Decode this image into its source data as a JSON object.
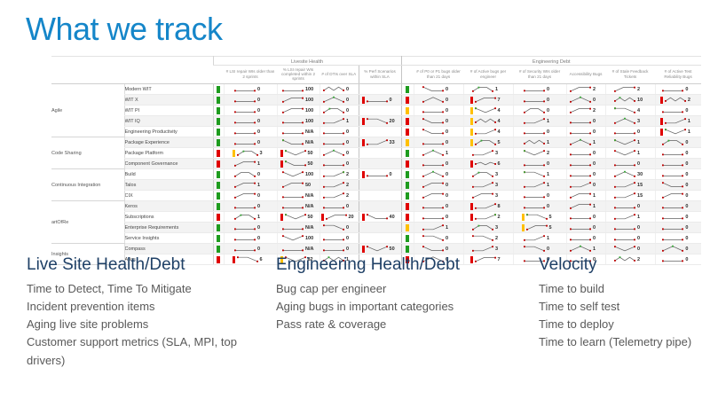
{
  "title": "What we track",
  "colors": {
    "accent_blue": "#1586c9",
    "heading_navy": "#1f4066",
    "body_gray": "#595959",
    "status_green": "#1f9c1f",
    "status_red": "#e00000",
    "status_yellow": "#ffc000"
  },
  "table": {
    "section_headers": {
      "livesite": "Livesite Health",
      "engineering": "Engineering Debt"
    },
    "ls_columns": [
      "# LSI repair WIs older than 2 sprints",
      "% LSI repair WIs completed within 2 sprints",
      "# of DTIs over SLA",
      "% Perf Scenarios within SLA"
    ],
    "eng_columns": [
      "# of P0 or P1 bugs older than 21 days",
      "# of Active bugs per engineer",
      "# of Security WIs older than 21 days",
      "Accessibility Bugs",
      "# of Stale Feedback Tickets",
      "# of Active Test Reliability Bugs"
    ],
    "groups": [
      {
        "label": "Agile",
        "span": 5
      },
      {
        "label": "Code Sharing",
        "span": 3
      },
      {
        "label": "Continuous Integration",
        "span": 3
      },
      {
        "label": "artOfRe",
        "span": 4
      },
      {
        "label": "Insights",
        "span": 2
      }
    ],
    "rows": [
      {
        "team": "Modern WIT",
        "ls_status": "green",
        "eng_status": "green",
        "ls": [
          {
            "v": "0",
            "p": "flat"
          },
          {
            "v": "100",
            "p": "flat"
          },
          {
            "v": "0",
            "p": "zigzag"
          },
          null
        ],
        "eng": [
          {
            "v": "0",
            "p": "fallflat"
          },
          {
            "v": "1",
            "p": "hump",
            "g": true
          },
          {
            "v": "0",
            "p": "flat"
          },
          {
            "v": "2",
            "p": "riseflat"
          },
          {
            "v": "2",
            "p": "riseflat"
          },
          {
            "v": "0",
            "p": "flat"
          }
        ]
      },
      {
        "team": "WIT X",
        "ls_status": "green",
        "eng_status": "red",
        "ls": [
          {
            "v": "0",
            "p": "flat"
          },
          {
            "v": "100",
            "p": "riseflat"
          },
          {
            "v": "0",
            "p": "peak",
            "g": true
          },
          {
            "v": "0",
            "p": "flat",
            "b": "red"
          }
        ],
        "eng": [
          {
            "v": "0",
            "p": "peak"
          },
          {
            "v": "7",
            "p": "riseflat",
            "b": "red"
          },
          {
            "v": "0",
            "p": "flat"
          },
          {
            "v": "0",
            "p": "peak",
            "g": true
          },
          {
            "v": "10",
            "p": "zigzag",
            "g": true
          },
          {
            "v": "2",
            "p": "zigzag",
            "b": "red"
          }
        ]
      },
      {
        "team": "WIT PI",
        "ls_status": "green",
        "eng_status": "yellow",
        "ls": [
          {
            "v": "0",
            "p": "flat"
          },
          {
            "v": "100",
            "p": "riseflat"
          },
          {
            "v": "0",
            "p": "hump",
            "g": true
          },
          null
        ],
        "eng": [
          {
            "v": "0",
            "p": "flat"
          },
          {
            "v": "4",
            "p": "dip",
            "b": "yellow",
            "g": true
          },
          {
            "v": "0",
            "p": "hump"
          },
          {
            "v": "2",
            "p": "riseflat"
          },
          {
            "v": "4",
            "p": "fall",
            "g": true
          },
          {
            "v": "0",
            "p": "flat"
          }
        ]
      },
      {
        "team": "WIT IQ",
        "ls_status": "green",
        "eng_status": "red",
        "ls": [
          {
            "v": "0",
            "p": "flat"
          },
          {
            "v": "100",
            "p": "flat"
          },
          {
            "v": "1",
            "p": "rise"
          },
          {
            "v": "20",
            "p": "fall",
            "b": "red"
          }
        ],
        "eng": [
          {
            "v": "0",
            "p": "fallflat"
          },
          {
            "v": "4",
            "p": "zigzag",
            "b": "yellow"
          },
          {
            "v": "1",
            "p": "rise"
          },
          {
            "v": "0",
            "p": "flat"
          },
          {
            "v": "3",
            "p": "peak",
            "g": true
          },
          {
            "v": "1",
            "p": "rise",
            "b": "red"
          }
        ]
      },
      {
        "team": "Engineering Productivity",
        "ls_status": "green",
        "eng_status": "red",
        "ls": [
          {
            "v": "0",
            "p": "flat"
          },
          {
            "v": "N/A",
            "p": "flat"
          },
          {
            "v": "0",
            "p": "flat"
          },
          null
        ],
        "eng": [
          {
            "v": "0",
            "p": "fallflat"
          },
          {
            "v": "4",
            "p": "rise",
            "b": "yellow"
          },
          {
            "v": "0",
            "p": "flat"
          },
          {
            "v": "0",
            "p": "flat"
          },
          {
            "v": "0",
            "p": "flat"
          },
          {
            "v": "1",
            "p": "dip",
            "b": "red",
            "g": true
          }
        ]
      },
      {
        "team": "Package Experience",
        "ls_status": "green",
        "eng_status": "yellow",
        "ls": [
          {
            "v": "0",
            "p": "flat"
          },
          {
            "v": "N/A",
            "p": "fallflat",
            "g": true
          },
          {
            "v": "0",
            "p": "flat"
          },
          {
            "v": "33",
            "p": "rise",
            "b": "red"
          }
        ],
        "eng": [
          {
            "v": "0",
            "p": "flat"
          },
          {
            "v": "5",
            "p": "hump",
            "b": "yellow",
            "g": true
          },
          {
            "v": "1",
            "p": "zigzag"
          },
          {
            "v": "1",
            "p": "peak",
            "g": true
          },
          {
            "v": "1",
            "p": "dip",
            "g": true
          },
          {
            "v": "0",
            "p": "hump",
            "g": true
          }
        ]
      },
      {
        "team": "Package Platform",
        "ls_status": "red",
        "eng_status": "green",
        "ls": [
          {
            "v": "3",
            "p": "hump",
            "b": "yellow",
            "g": true
          },
          {
            "v": "50",
            "p": "dip",
            "b": "red",
            "g": true
          },
          {
            "v": "0",
            "p": "peak",
            "g": true
          },
          null
        ],
        "eng": [
          {
            "v": "1",
            "p": "peak",
            "g": true
          },
          {
            "v": "3",
            "p": "rise"
          },
          {
            "v": "2",
            "p": "dip",
            "g": true
          },
          {
            "v": "0",
            "p": "flat"
          },
          {
            "v": "1",
            "p": "dip"
          },
          {
            "v": "0",
            "p": "flat"
          }
        ]
      },
      {
        "team": "Component Governance",
        "ls_status": "red",
        "eng_status": "red",
        "ls": [
          {
            "v": "1",
            "p": "riseflat"
          },
          {
            "v": "50",
            "p": "fallflat",
            "b": "red",
            "g": true
          },
          {
            "v": "0",
            "p": "flat"
          },
          null
        ],
        "eng": [
          {
            "v": "0",
            "p": "flat"
          },
          {
            "v": "6",
            "p": "wave",
            "b": "red"
          },
          {
            "v": "0",
            "p": "flat"
          },
          {
            "v": "0",
            "p": "flat"
          },
          {
            "v": "0",
            "p": "flat"
          },
          {
            "v": "0",
            "p": "flat"
          }
        ]
      },
      {
        "team": "Build",
        "ls_status": "green",
        "eng_status": "green",
        "ls": [
          {
            "v": "0",
            "p": "hump"
          },
          {
            "v": "100",
            "p": "dip"
          },
          {
            "v": "2",
            "p": "rise",
            "g": true
          },
          {
            "v": "0",
            "p": "flat",
            "b": "red"
          }
        ],
        "eng": [
          {
            "v": "0",
            "p": "peak",
            "g": true
          },
          {
            "v": "3",
            "p": "hump",
            "g": true
          },
          {
            "v": "1",
            "p": "fall",
            "g": true
          },
          {
            "v": "0",
            "p": "flat"
          },
          {
            "v": "30",
            "p": "peak",
            "g": true
          },
          {
            "v": "0",
            "p": "flat"
          }
        ]
      },
      {
        "team": "Talos",
        "ls_status": "green",
        "eng_status": "green",
        "ls": [
          {
            "v": "1",
            "p": "riseflat"
          },
          {
            "v": "50",
            "p": "riseflat"
          },
          {
            "v": "2",
            "p": "rise"
          },
          null
        ],
        "eng": [
          {
            "v": "0",
            "p": "riseflat"
          },
          {
            "v": "3",
            "p": "rise"
          },
          {
            "v": "1",
            "p": "rise"
          },
          {
            "v": "0",
            "p": "rise"
          },
          {
            "v": "15",
            "p": "rise"
          },
          {
            "v": "0",
            "p": "fallflat"
          }
        ]
      },
      {
        "team": "CIX",
        "ls_status": "green",
        "eng_status": "green",
        "ls": [
          {
            "v": "0",
            "p": "riseflat"
          },
          {
            "v": "N/A",
            "p": "flat"
          },
          {
            "v": "2",
            "p": "rise"
          },
          null
        ],
        "eng": [
          {
            "v": "0",
            "p": "riseflat"
          },
          {
            "v": "3",
            "p": "riseflat"
          },
          {
            "v": "0",
            "p": "flat"
          },
          {
            "v": "1",
            "p": "riseflat"
          },
          {
            "v": "15",
            "p": "rise"
          },
          {
            "v": "0",
            "p": "riseflat"
          }
        ]
      },
      {
        "team": "Keros",
        "ls_status": "green",
        "eng_status": "red",
        "ls": [
          {
            "v": "0",
            "p": "flat"
          },
          {
            "v": "N/A",
            "p": "flat"
          },
          {
            "v": "0",
            "p": "flat"
          },
          null
        ],
        "eng": [
          {
            "v": "0",
            "p": "flat"
          },
          {
            "v": "8",
            "p": "rise",
            "b": "red"
          },
          {
            "v": "0",
            "p": "flat"
          },
          {
            "v": "1",
            "p": "riseflat"
          },
          {
            "v": "0",
            "p": "flat"
          },
          {
            "v": "0",
            "p": "flat"
          }
        ]
      },
      {
        "team": "Subscriptions",
        "ls_status": "red",
        "eng_status": "red",
        "ls": [
          {
            "v": "1",
            "p": "hump",
            "g": true
          },
          {
            "v": "50",
            "p": "dip",
            "b": "red",
            "g": true
          },
          {
            "v": "20",
            "p": "riseflat",
            "b": "red"
          },
          {
            "v": "40",
            "p": "fallflat",
            "b": "red"
          }
        ],
        "eng": [
          {
            "v": "0",
            "p": "flat"
          },
          {
            "v": "2",
            "p": "rise",
            "b": "red",
            "g": true
          },
          {
            "v": "5",
            "p": "fall",
            "b": "yellow",
            "g": true
          },
          {
            "v": "0",
            "p": "flat"
          },
          {
            "v": "1",
            "p": "rise"
          },
          {
            "v": "0",
            "p": "flat"
          }
        ]
      },
      {
        "team": "Enterprise Requirements",
        "ls_status": "green",
        "eng_status": "yellow",
        "ls": [
          {
            "v": "0",
            "p": "flat"
          },
          {
            "v": "N/A",
            "p": "flat"
          },
          {
            "v": "0",
            "p": "fall"
          },
          null
        ],
        "eng": [
          {
            "v": "1",
            "p": "rise"
          },
          {
            "v": "3",
            "p": "hump",
            "g": true
          },
          {
            "v": "5",
            "p": "riseflat",
            "b": "yellow"
          },
          {
            "v": "0",
            "p": "flat"
          },
          {
            "v": "0",
            "p": "flat"
          },
          {
            "v": "0",
            "p": "flat"
          }
        ]
      },
      {
        "team": "Service Insights",
        "ls_status": "green",
        "eng_status": "green",
        "ls": [
          {
            "v": "0",
            "p": "flat"
          },
          {
            "v": "100",
            "p": "dip"
          },
          {
            "v": "0",
            "p": "flat"
          },
          null
        ],
        "eng": [
          {
            "v": "0",
            "p": "fall"
          },
          {
            "v": "2",
            "p": "fall"
          },
          {
            "v": "1",
            "p": "rise"
          },
          {
            "v": "0",
            "p": "flat"
          },
          {
            "v": "0",
            "p": "flat"
          },
          {
            "v": "0",
            "p": "flat"
          }
        ]
      },
      {
        "team": "Compass",
        "ls_status": "green",
        "eng_status": "green",
        "ls": [
          {
            "v": "0",
            "p": "flat"
          },
          {
            "v": "N/A",
            "p": "flat"
          },
          {
            "v": "0",
            "p": "flat"
          },
          {
            "v": "50",
            "p": "dip",
            "b": "red"
          }
        ],
        "eng": [
          {
            "v": "0",
            "p": "fallflat"
          },
          {
            "v": "3",
            "p": "rise"
          },
          {
            "v": "0",
            "p": "fall"
          },
          {
            "v": "1",
            "p": "peak",
            "g": true
          },
          {
            "v": "0",
            "p": "dip"
          },
          {
            "v": "0",
            "p": "peak",
            "g": true
          }
        ]
      },
      {
        "team": "Atlas",
        "ls_status": "red",
        "eng_status": "red",
        "ls": [
          {
            "v": "6",
            "p": "fall",
            "b": "red"
          },
          {
            "v": "82",
            "p": "dip",
            "b": "yellow"
          },
          {
            "v": "1",
            "p": "zigzag",
            "g": true
          },
          null
        ],
        "eng": [
          {
            "v": "0",
            "p": "peak"
          },
          {
            "v": "7",
            "p": "riseflat",
            "b": "red"
          },
          {
            "v": "0",
            "p": "flat"
          },
          {
            "v": "0",
            "p": "flat"
          },
          {
            "v": "2",
            "p": "zigzag",
            "g": true
          },
          {
            "v": "0",
            "p": "flat"
          }
        ]
      }
    ]
  },
  "sections": [
    {
      "heading": "Live Site Health/Debt",
      "items": [
        "Time to Detect, Time To Mitigate",
        "Incident prevention items",
        "Aging live site problems",
        "Customer support metrics (SLA, MPI, top drivers)"
      ]
    },
    {
      "heading": "Engineering Health/Debt",
      "items": [
        "Bug cap per engineer",
        "Aging bugs in important categories",
        "Pass rate & coverage"
      ]
    },
    {
      "heading": "Velocity",
      "items": [
        "Time to build",
        "Time to self test",
        "Time to deploy",
        "Time to learn (Telemetry pipe)"
      ]
    }
  ]
}
